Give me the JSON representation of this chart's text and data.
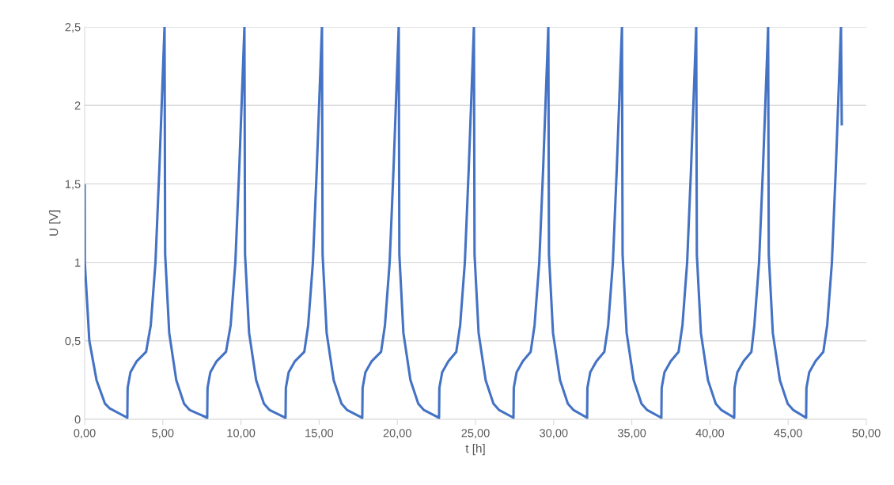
{
  "chart_data": {
    "type": "line",
    "xlabel": "t [h]",
    "ylabel": "U [V]",
    "xlim": [
      0,
      50
    ],
    "ylim": [
      0,
      2.5
    ],
    "xticks": [
      {
        "value": 0,
        "label": "0,00"
      },
      {
        "value": 5,
        "label": "5,00"
      },
      {
        "value": 10,
        "label": "10,00"
      },
      {
        "value": 15,
        "label": "15,00"
      },
      {
        "value": 20,
        "label": "20,00"
      },
      {
        "value": 25,
        "label": "25,00"
      },
      {
        "value": 30,
        "label": "30,00"
      },
      {
        "value": 35,
        "label": "35,00"
      },
      {
        "value": 40,
        "label": "40,00"
      },
      {
        "value": 45,
        "label": "45,00"
      },
      {
        "value": 50,
        "label": "50,00"
      }
    ],
    "yticks": [
      0,
      {
        "value": 0.5,
        "label": "0,5"
      },
      1,
      {
        "value": 1.5,
        "label": "1,5"
      },
      2,
      {
        "value": 2.5,
        "label": "2,5"
      }
    ],
    "grid": "y",
    "legend": false,
    "marker": "none",
    "line_style": "solid",
    "series": [
      {
        "color": "#4472c4",
        "x": [
          0,
          0.01,
          0.3,
          0.76,
          1.3,
          1.6,
          2.73,
          2.75,
          2.93,
          3.33,
          3.93,
          4.23,
          4.53,
          4.78,
          5.11,
          5.15,
          5.41,
          5.86,
          6.36,
          6.71,
          7.84,
          7.86,
          8.04,
          8.44,
          9.04,
          9.34,
          9.64,
          9.89,
          10.22,
          10.26,
          10.52,
          10.97,
          11.47,
          11.82,
          12.85,
          12.87,
          13.05,
          13.45,
          14.05,
          14.3,
          14.6,
          14.85,
          15.18,
          15.22,
          15.48,
          15.93,
          16.43,
          16.78,
          17.76,
          17.78,
          17.96,
          18.36,
          18.96,
          19.21,
          19.51,
          19.76,
          20.09,
          20.13,
          20.39,
          20.84,
          21.34,
          21.69,
          22.67,
          22.69,
          22.87,
          23.27,
          23.77,
          24.02,
          24.32,
          24.57,
          24.9,
          24.94,
          25.2,
          25.65,
          26.15,
          26.5,
          27.43,
          27.45,
          27.63,
          28.03,
          28.53,
          28.78,
          29.08,
          29.33,
          29.66,
          29.7,
          29.96,
          30.41,
          30.91,
          31.26,
          32.14,
          32.16,
          32.34,
          32.74,
          33.24,
          33.49,
          33.79,
          34.04,
          34.37,
          34.41,
          34.67,
          35.12,
          35.62,
          35.97,
          36.89,
          36.91,
          37.09,
          37.49,
          37.99,
          38.24,
          38.54,
          38.79,
          39.12,
          39.16,
          39.42,
          39.87,
          40.37,
          40.72,
          41.55,
          41.57,
          41.75,
          42.15,
          42.65,
          42.84,
          43.14,
          43.39,
          43.72,
          43.76,
          44.02,
          44.47,
          44.97,
          45.32,
          46.15,
          46.17,
          46.35,
          46.75,
          47.25,
          47.5,
          47.8,
          48.05,
          48.38,
          48.43
        ],
        "values": [
          1.49,
          1.0,
          0.5,
          0.25,
          0.1,
          0.07,
          0.01,
          0.2,
          0.3,
          0.37,
          0.43,
          0.6,
          1.0,
          1.6,
          2.5,
          1.05,
          0.55,
          0.25,
          0.1,
          0.06,
          0.01,
          0.2,
          0.3,
          0.37,
          0.43,
          0.6,
          1.0,
          1.6,
          2.5,
          1.05,
          0.55,
          0.25,
          0.1,
          0.06,
          0.01,
          0.2,
          0.3,
          0.37,
          0.43,
          0.6,
          1.0,
          1.6,
          2.5,
          1.05,
          0.55,
          0.25,
          0.1,
          0.06,
          0.01,
          0.2,
          0.3,
          0.37,
          0.43,
          0.6,
          1.0,
          1.6,
          2.5,
          1.05,
          0.55,
          0.25,
          0.1,
          0.06,
          0.01,
          0.2,
          0.3,
          0.37,
          0.43,
          0.6,
          1.0,
          1.6,
          2.5,
          1.05,
          0.55,
          0.25,
          0.1,
          0.06,
          0.01,
          0.2,
          0.3,
          0.37,
          0.43,
          0.6,
          1.0,
          1.6,
          2.5,
          1.05,
          0.55,
          0.25,
          0.1,
          0.06,
          0.01,
          0.2,
          0.3,
          0.37,
          0.43,
          0.6,
          1.0,
          1.6,
          2.5,
          1.05,
          0.55,
          0.25,
          0.1,
          0.06,
          0.01,
          0.2,
          0.3,
          0.37,
          0.43,
          0.6,
          1.0,
          1.6,
          2.5,
          1.05,
          0.55,
          0.25,
          0.1,
          0.06,
          0.01,
          0.2,
          0.3,
          0.37,
          0.43,
          0.6,
          1.0,
          1.6,
          2.5,
          1.05,
          0.55,
          0.25,
          0.1,
          0.06,
          0.01,
          0.2,
          0.3,
          0.37,
          0.43,
          0.6,
          1.0,
          1.6,
          2.5,
          1.88
        ]
      }
    ]
  }
}
